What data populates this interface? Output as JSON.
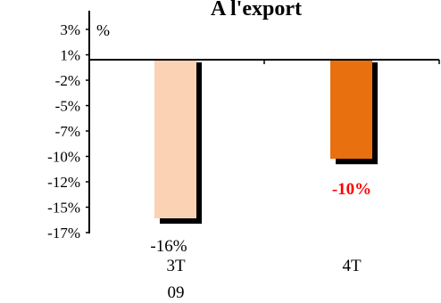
{
  "chart_data": {
    "type": "bar",
    "title": "A l'export",
    "unit_label": "%",
    "ylim": [
      -17,
      3
    ],
    "yticks": [
      "3%",
      "1%",
      "-2%",
      "-5%",
      "-7%",
      "-10%",
      "-12%",
      "-15%",
      "-17%"
    ],
    "categories": [
      "3T\n09",
      "4T"
    ],
    "values": [
      -16,
      -10
    ],
    "data_labels": [
      "-16%",
      "-10%"
    ],
    "bar_colors": [
      "#FBD2B3",
      "#E8700E"
    ],
    "shadow_color": "#000000",
    "data_label_colors": [
      "#000000",
      "#FF0000"
    ],
    "grid": false,
    "legend": "none"
  }
}
